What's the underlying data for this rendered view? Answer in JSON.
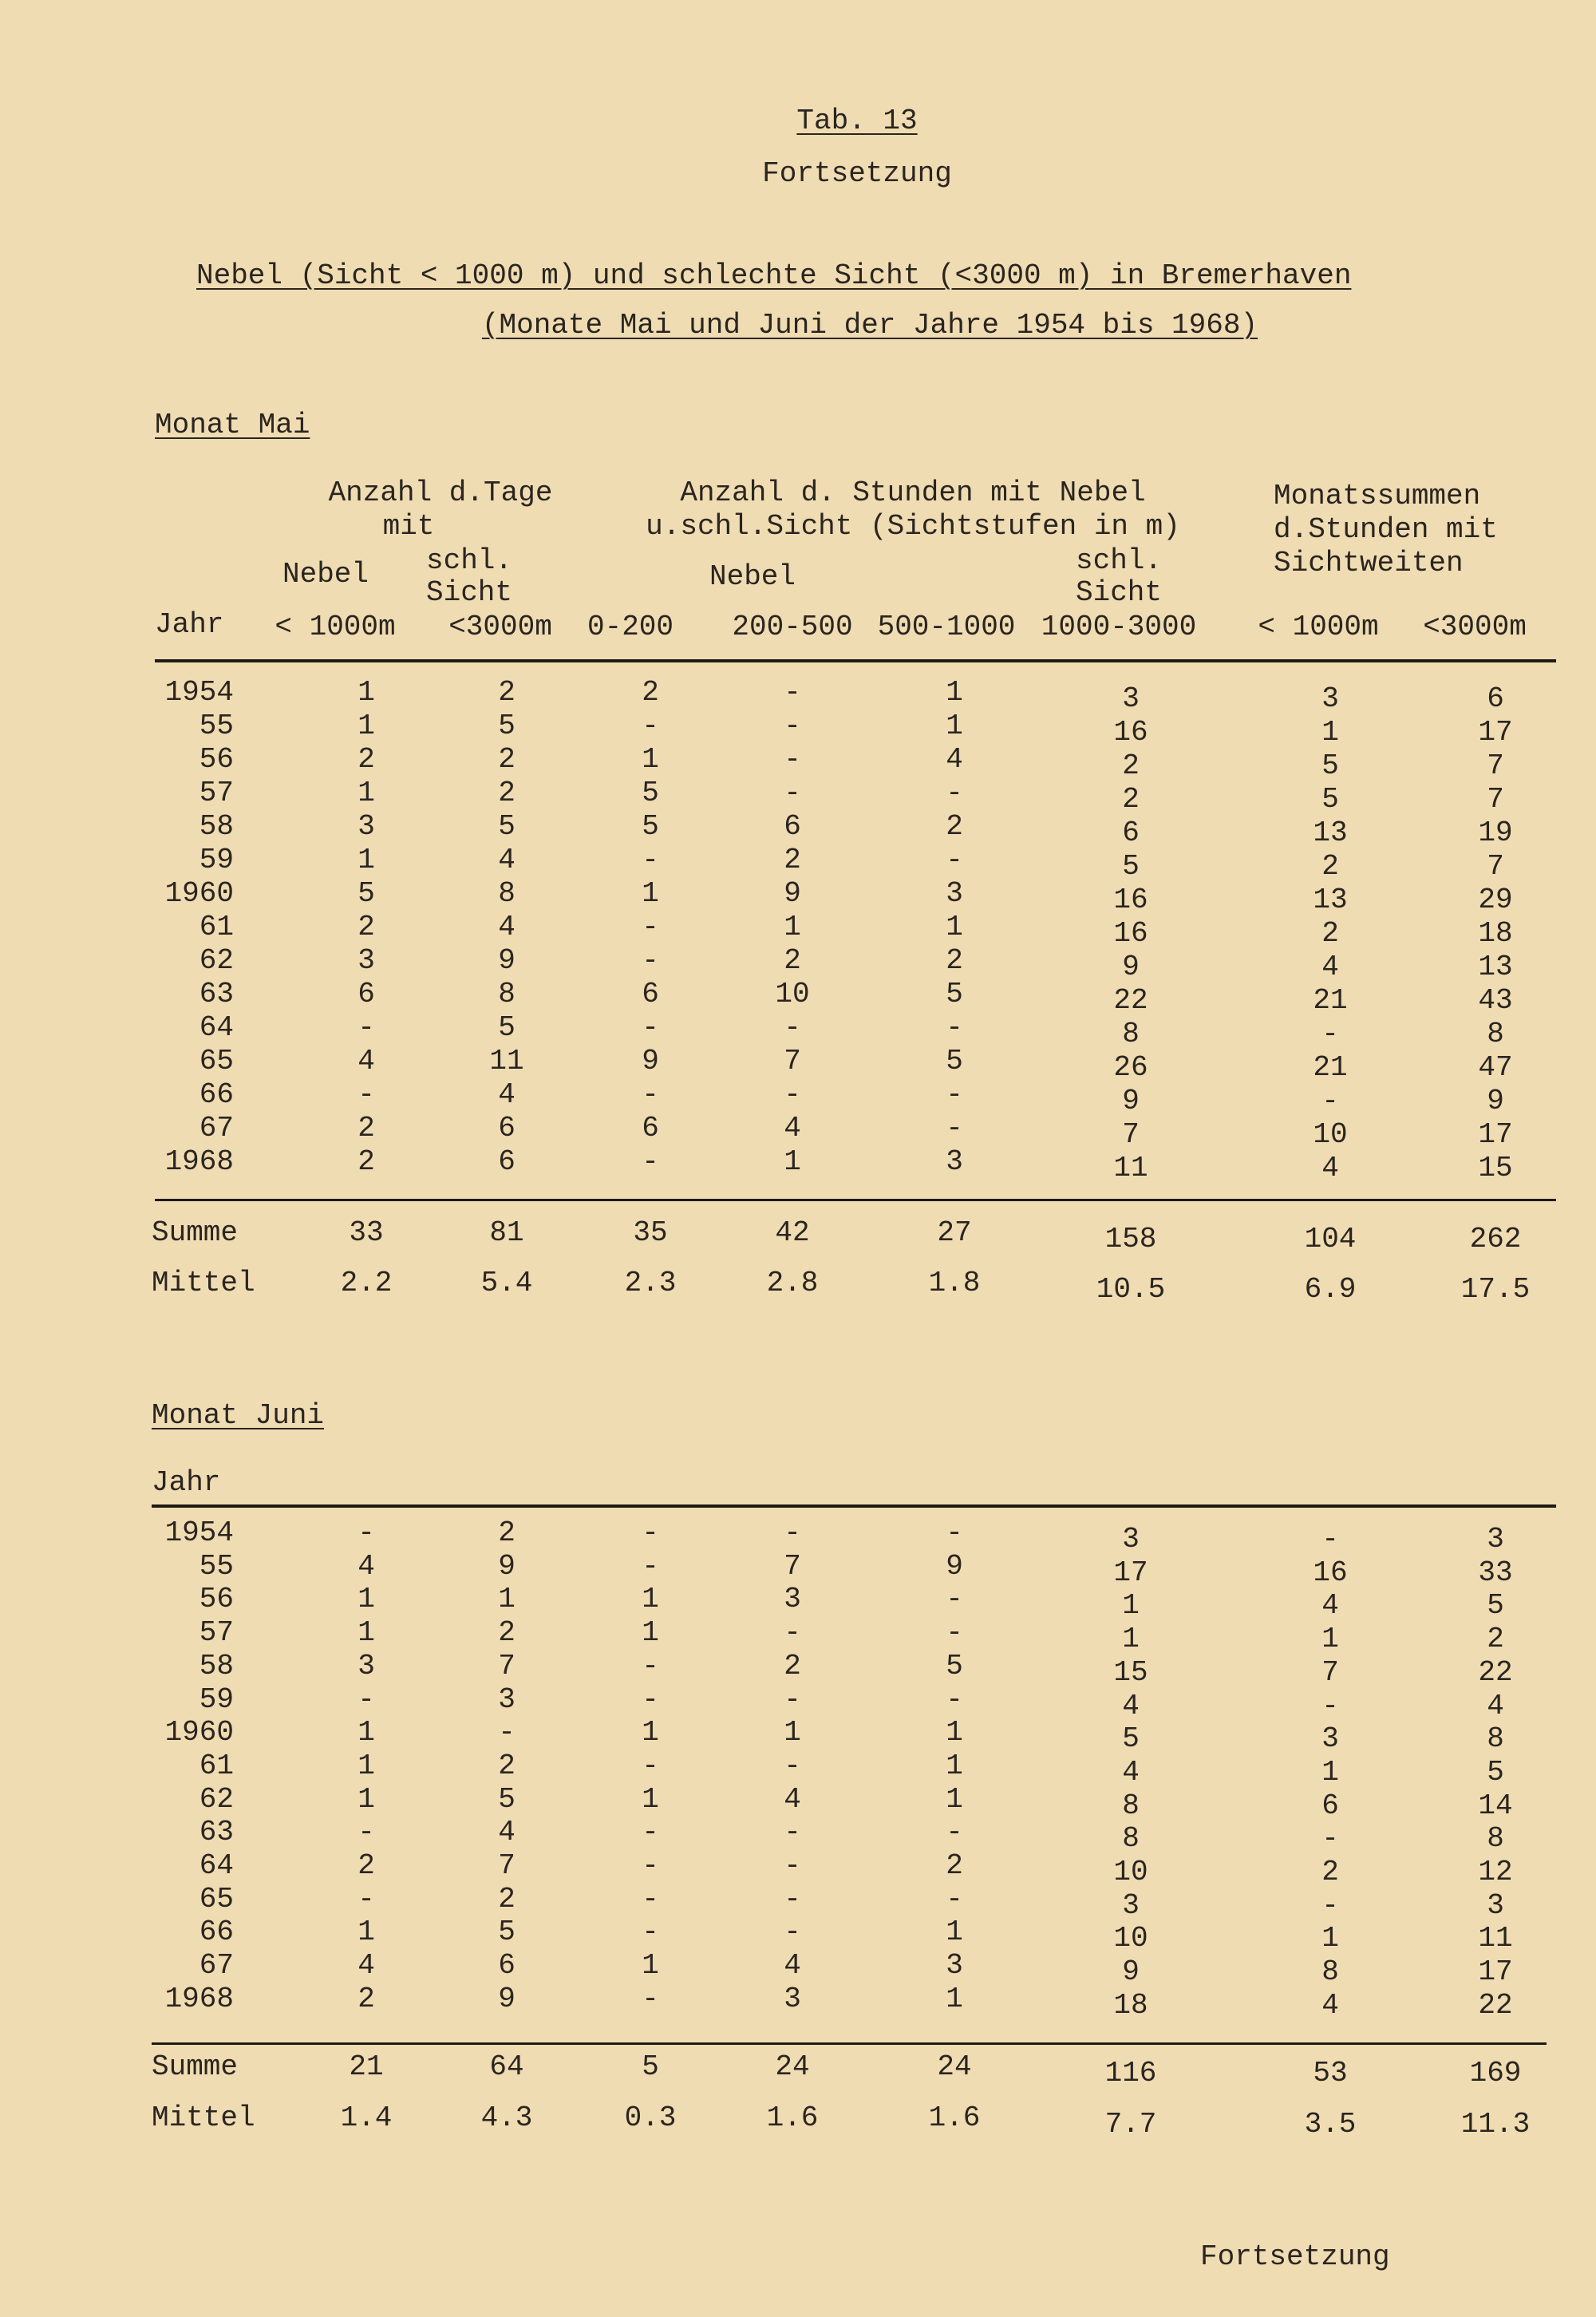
{
  "header": {
    "tab_label": "Tab. 13",
    "continuation_top": "Fortsetzung",
    "title_line1": "Nebel (Sicht < 1000 m) und schlechte Sicht (<3000 m) in Bremerhaven",
    "title_line2": "(Monate Mai und Juni der Jahre 1954 bis 1968)"
  },
  "column_headers": {
    "group_days": "Anzahl d.Tage",
    "group_days_sub": "mit",
    "nebel_days": "Nebel",
    "schl_days_1": "schl.",
    "schl_days_2": "Sicht",
    "group_hours_1": "Anzahl d. Stunden mit Nebel",
    "group_hours_2": "u.schl.Sicht (Sichtstufen in m)",
    "nebel_hours": "Nebel",
    "schl_hours_1": "schl.",
    "schl_hours_2": "Sicht",
    "group_sums_1": "Monatssummen",
    "group_sums_2": "d.Stunden mit",
    "group_sums_3": "Sichtweiten",
    "jahr": "Jahr",
    "units": [
      "< 1000m",
      "<3000m",
      "0-200",
      "200-500",
      "500-1000",
      "1000-3000",
      "< 1000m",
      "<3000m"
    ]
  },
  "may": {
    "label": "Monat Mai",
    "rows": [
      [
        "1954",
        "1",
        "2",
        "2",
        "-",
        "1",
        "3",
        "3",
        "6"
      ],
      [
        "55",
        "1",
        "5",
        "-",
        "-",
        "1",
        "16",
        "1",
        "17"
      ],
      [
        "56",
        "2",
        "2",
        "1",
        "-",
        "4",
        "2",
        "5",
        "7"
      ],
      [
        "57",
        "1",
        "2",
        "5",
        "-",
        "-",
        "2",
        "5",
        "7"
      ],
      [
        "58",
        "3",
        "5",
        "5",
        "6",
        "2",
        "6",
        "13",
        "19"
      ],
      [
        "59",
        "1",
        "4",
        "-",
        "2",
        "-",
        "5",
        "2",
        "7"
      ],
      [
        "1960",
        "5",
        "8",
        "1",
        "9",
        "3",
        "16",
        "13",
        "29"
      ],
      [
        "61",
        "2",
        "4",
        "-",
        "1",
        "1",
        "16",
        "2",
        "18"
      ],
      [
        "62",
        "3",
        "9",
        "-",
        "2",
        "2",
        "9",
        "4",
        "13"
      ],
      [
        "63",
        "6",
        "8",
        "6",
        "10",
        "5",
        "22",
        "21",
        "43"
      ],
      [
        "64",
        "-",
        "5",
        "-",
        "-",
        "-",
        "8",
        "-",
        "8"
      ],
      [
        "65",
        "4",
        "11",
        "9",
        "7",
        "5",
        "26",
        "21",
        "47"
      ],
      [
        "66",
        "-",
        "4",
        "-",
        "-",
        "-",
        "9",
        "-",
        "9"
      ],
      [
        "67",
        "2",
        "6",
        "6",
        "4",
        "-",
        "7",
        "10",
        "17"
      ],
      [
        "1968",
        "2",
        "6",
        "-",
        "1",
        "3",
        "11",
        "4",
        "15"
      ]
    ],
    "summe": [
      "Summe",
      "33",
      "81",
      "35",
      "42",
      "27",
      "158",
      "104",
      "262"
    ],
    "mittel": [
      "Mittel",
      "2.2",
      "5.4",
      "2.3",
      "2.8",
      "1.8",
      "10.5",
      "6.9",
      "17.5"
    ]
  },
  "june": {
    "label": "Monat Juni",
    "jahr": "Jahr",
    "rows": [
      [
        "1954",
        "-",
        "2",
        "-",
        "-",
        "-",
        "3",
        "-",
        "3"
      ],
      [
        "55",
        "4",
        "9",
        "-",
        "7",
        "9",
        "17",
        "16",
        "33"
      ],
      [
        "56",
        "1",
        "1",
        "1",
        "3",
        "-",
        "1",
        "4",
        "5"
      ],
      [
        "57",
        "1",
        "2",
        "1",
        "-",
        "-",
        "1",
        "1",
        "2"
      ],
      [
        "58",
        "3",
        "7",
        "-",
        "2",
        "5",
        "15",
        "7",
        "22"
      ],
      [
        "59",
        "-",
        "3",
        "-",
        "-",
        "-",
        "4",
        "-",
        "4"
      ],
      [
        "1960",
        "1",
        "-",
        "1",
        "1",
        "1",
        "5",
        "3",
        "8"
      ],
      [
        "61",
        "1",
        "2",
        "-",
        "-",
        "1",
        "4",
        "1",
        "5"
      ],
      [
        "62",
        "1",
        "5",
        "1",
        "4",
        "1",
        "8",
        "6",
        "14"
      ],
      [
        "63",
        "-",
        "4",
        "-",
        "-",
        "-",
        "8",
        "-",
        "8"
      ],
      [
        "64",
        "2",
        "7",
        "-",
        "-",
        "2",
        "10",
        "2",
        "12"
      ],
      [
        "65",
        "-",
        "2",
        "-",
        "-",
        "-",
        "3",
        "-",
        "3"
      ],
      [
        "66",
        "1",
        "5",
        "-",
        "-",
        "1",
        "10",
        "1",
        "11"
      ],
      [
        "67",
        "4",
        "6",
        "1",
        "4",
        "3",
        "9",
        "8",
        "17"
      ],
      [
        "1968",
        "2",
        "9",
        "-",
        "3",
        "1",
        "18",
        "4",
        "22"
      ]
    ],
    "summe": [
      "Summe",
      "21",
      "64",
      "5",
      "24",
      "24",
      "116",
      "53",
      "169"
    ],
    "mittel": [
      "Mittel",
      "1.4",
      "4.3",
      "0.3",
      "1.6",
      "1.6",
      "7.7",
      "3.5",
      "11.3"
    ]
  },
  "footer": {
    "continuation_bottom": "Fortsetzung"
  }
}
